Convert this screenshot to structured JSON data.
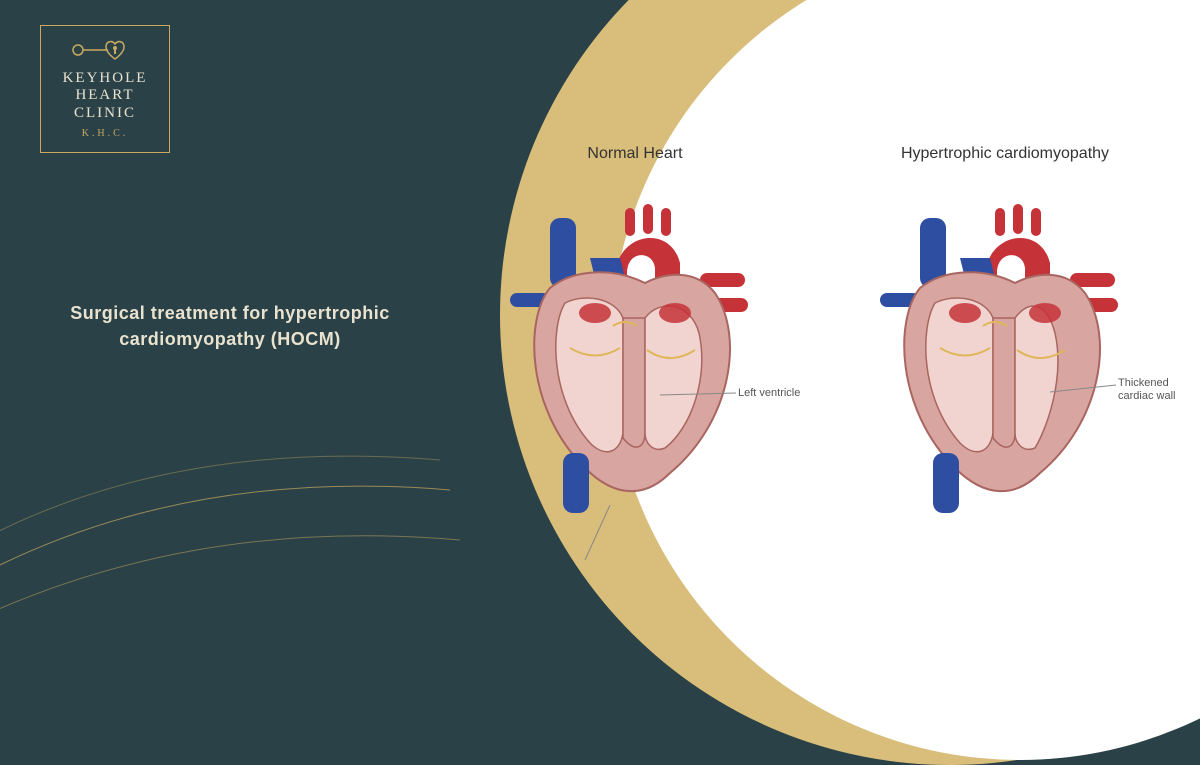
{
  "colors": {
    "background": "#2a4247",
    "gold": "#c9a95f",
    "gold_light": "#d9bd7a",
    "white": "#ffffff",
    "cream_text": "#e9e2cf",
    "artery_red": "#c53238",
    "vein_blue": "#2e4fa1",
    "muscle_fill": "#d9a5a0",
    "muscle_stroke": "#a9655f",
    "chamber_fill": "#f1d4cf",
    "valve": "#e0b65a",
    "diagram_text": "#333333",
    "annot_text": "#555555",
    "annot_line": "#888888"
  },
  "logo": {
    "line1": "KEYHOLE",
    "line2": "HEART",
    "line3": "CLINIC",
    "sub": "K.H.C."
  },
  "title": "Surgical treatment for hypertrophic cardiomyopathy (HOCM)",
  "diagram": {
    "left": {
      "title": "Normal Heart",
      "annotation": "Left ventricle"
    },
    "right": {
      "title": "Hypertrophic cardiomyopathy",
      "annotation": "Thickened cardiac wall"
    }
  }
}
